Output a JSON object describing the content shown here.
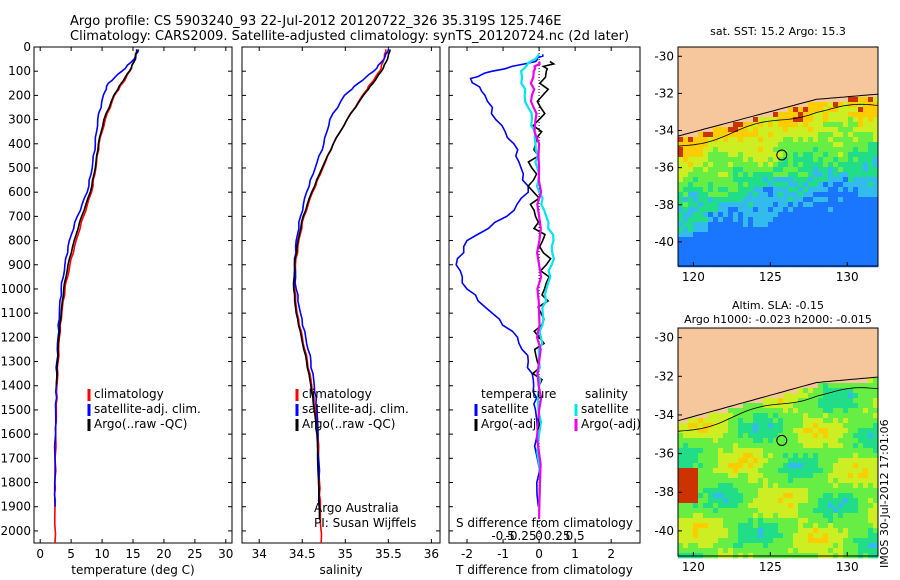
{
  "header": {
    "line1": "Argo profile: CS 5903240_93 22-Jul-2012 20120722_326 35.319S 125.746E",
    "line2": "Climatology: CARS2009. Satellite-adjusted climatology: synTS_20120724.nc (2d later)"
  },
  "stamp": "IMOS 30-Jul-2012 17:01:06",
  "colors": {
    "clim": "#ff0000",
    "sat": "#0000ff",
    "argo": "#000000",
    "sat_s": "#00e5ee",
    "argo_s": "#ee00ee",
    "land": "#f6c79c"
  },
  "chart_data": [
    {
      "type": "line",
      "xlabel": "temperature (deg C)",
      "ylabel": "",
      "xlim": [
        -1,
        31
      ],
      "ylim": [
        2050,
        0
      ],
      "xticks": [
        0,
        5,
        10,
        15,
        20,
        25,
        30
      ],
      "yticks": [
        0,
        100,
        200,
        300,
        400,
        500,
        600,
        700,
        800,
        900,
        1000,
        1100,
        1200,
        1300,
        1400,
        1500,
        1600,
        1700,
        1800,
        1900,
        2000
      ],
      "legend": [
        "climatology",
        "satellite-adj. clim.",
        "Argo(..raw -QC)"
      ],
      "series": [
        {
          "name": "climatology",
          "color": "clim",
          "x": [
            15.6,
            15.3,
            14.5,
            13.3,
            12.0,
            10.5,
            9.5,
            9.0,
            8.3,
            7.0,
            5.8,
            4.8,
            4.0,
            3.5,
            3.1,
            2.9,
            2.7,
            2.6,
            2.5,
            2.4,
            2.4,
            2.4
          ],
          "y": [
            10,
            50,
            100,
            150,
            200,
            300,
            400,
            500,
            600,
            700,
            800,
            900,
            1000,
            1100,
            1200,
            1300,
            1400,
            1500,
            1600,
            1800,
            1900,
            2050
          ]
        },
        {
          "name": "satellite-adj. clim.",
          "color": "sat",
          "x": [
            15.9,
            15.2,
            13.2,
            11.0,
            10.2,
            9.3,
            8.9,
            8.4,
            7.6,
            6.0,
            4.7,
            4.0,
            3.4,
            3.1,
            2.9,
            2.7,
            2.6,
            2.5,
            2.4,
            2.4
          ],
          "y": [
            10,
            50,
            100,
            150,
            200,
            300,
            400,
            500,
            600,
            700,
            800,
            900,
            1000,
            1100,
            1200,
            1300,
            1400,
            1500,
            1700,
            1900
          ]
        },
        {
          "name": "Argo(..raw -QC)",
          "color": "argo",
          "x": [
            15.6,
            15.4,
            14.4,
            13.1,
            11.9,
            10.3,
            9.4,
            8.9,
            8.1,
            6.7,
            5.5,
            4.5,
            3.8,
            3.4,
            3.0,
            2.8,
            2.6
          ],
          "y": [
            10,
            50,
            100,
            150,
            200,
            300,
            400,
            500,
            600,
            700,
            800,
            900,
            1000,
            1100,
            1200,
            1300,
            1400
          ]
        }
      ]
    },
    {
      "type": "line",
      "xlabel": "salinity",
      "xlim": [
        33.8,
        36.1
      ],
      "ylim": [
        2050,
        0
      ],
      "xticks": [
        34,
        34.5,
        35,
        35.5,
        36
      ],
      "legend": [
        "climatology",
        "satellite-adj. clim.",
        "Argo(..raw -QC)"
      ],
      "annotation": [
        "Argo Australia",
        "PI: Susan Wijffels"
      ],
      "series": [
        {
          "name": "climatology",
          "color": "clim",
          "x": [
            35.47,
            35.45,
            35.4,
            35.3,
            35.2,
            35.02,
            34.86,
            34.74,
            34.62,
            34.52,
            34.46,
            34.42,
            34.41,
            34.44,
            34.5,
            34.56,
            34.61,
            34.65,
            34.68,
            34.7,
            34.71,
            34.72
          ],
          "y": [
            10,
            50,
            100,
            150,
            200,
            300,
            400,
            500,
            600,
            700,
            800,
            900,
            1000,
            1100,
            1200,
            1300,
            1400,
            1500,
            1600,
            1800,
            1900,
            2050
          ]
        },
        {
          "name": "satellite-adj. clim.",
          "color": "sat",
          "x": [
            35.5,
            35.45,
            35.33,
            35.15,
            34.99,
            34.82,
            34.75,
            34.65,
            34.55,
            34.48,
            34.43,
            34.41,
            34.43,
            34.48,
            34.54,
            34.6,
            34.64,
            34.67,
            34.69,
            34.7
          ],
          "y": [
            10,
            50,
            100,
            150,
            200,
            300,
            400,
            500,
            600,
            700,
            800,
            900,
            1000,
            1100,
            1200,
            1300,
            1400,
            1500,
            1700,
            1900
          ]
        },
        {
          "name": "Argo(..raw -QC)",
          "color": "argo",
          "x": [
            35.52,
            35.49,
            35.42,
            35.32,
            35.21,
            35.02,
            34.86,
            34.73,
            34.61,
            34.51,
            34.45,
            34.41,
            34.4,
            34.43,
            34.49,
            34.55,
            34.6,
            34.64,
            34.67,
            34.69,
            34.7
          ],
          "y": [
            10,
            50,
            100,
            150,
            200,
            300,
            400,
            500,
            600,
            700,
            800,
            900,
            1000,
            1100,
            1200,
            1300,
            1400,
            1500,
            1600,
            1800,
            1950
          ]
        }
      ]
    },
    {
      "type": "line",
      "xlabel": "T difference from climatology",
      "x2label": "S difference from climatology",
      "xlim": [
        -2.5,
        2.8
      ],
      "ylim": [
        2050,
        0
      ],
      "xticks": [
        -2,
        -1,
        0,
        1,
        2
      ],
      "x2ticks": [
        -0.5,
        -0.25,
        0,
        0.25,
        0.5
      ],
      "legend_titles": [
        "temperature",
        "salinity"
      ],
      "legend": [
        "satellite",
        "Argo(-adj)",
        "satellite",
        "Argo(-adj)"
      ],
      "series": [
        {
          "name": "temperature satellite",
          "color": "sat",
          "x": [
            0.1,
            -0.1,
            -1.3,
            -1.9,
            -1.5,
            -1.2,
            -0.7,
            -0.5,
            -0.3,
            -0.9,
            -2.0,
            -2.3,
            -2.0,
            -1.3,
            -0.6,
            -0.3,
            -0.15,
            -0.1,
            -0.05,
            -0.02
          ],
          "y": [
            30,
            60,
            100,
            130,
            200,
            300,
            400,
            500,
            600,
            700,
            800,
            900,
            1000,
            1100,
            1200,
            1300,
            1400,
            1500,
            1700,
            1900
          ]
        },
        {
          "name": "temperature Argo(-adj)",
          "color": "argo",
          "x": [
            0.3,
            0.2,
            0.1,
            0.0,
            -0.1,
            -0.2,
            -0.15,
            -0.1,
            0.1,
            0.2,
            0.15,
            0.05,
            0.0,
            -0.05,
            0.0
          ],
          "y": [
            60,
            100,
            200,
            300,
            400,
            500,
            600,
            700,
            800,
            900,
            1000,
            1100,
            1200,
            1300,
            1400
          ]
        },
        {
          "name": "salinity satellite",
          "color": "sat_s",
          "x": [
            0.0,
            -0.5,
            -0.4,
            -0.2,
            -0.1,
            -0.05,
            0.0,
            0.2,
            0.4,
            0.35,
            0.2,
            0.1,
            0.05,
            0.0,
            0.0,
            0.0,
            0.0
          ],
          "y": [
            30,
            100,
            200,
            300,
            400,
            500,
            600,
            700,
            800,
            900,
            1000,
            1100,
            1200,
            1300,
            1400,
            1600,
            1900
          ]
        },
        {
          "name": "salinity Argo(-adj)",
          "color": "argo_s",
          "x": [
            0.0,
            -0.15,
            -0.2,
            -0.1,
            0.0,
            0.0,
            0.0,
            0.0,
            0.0,
            0.0,
            0.0
          ],
          "y": [
            60,
            100,
            200,
            300,
            500,
            700,
            900,
            1100,
            1300,
            1500,
            1950
          ]
        }
      ]
    },
    {
      "type": "heatmap",
      "title": "sat. SST: 15.2  Argo: 15.3",
      "xlim": [
        119,
        132
      ],
      "ylim": [
        -41.3,
        -29.5
      ],
      "xticks": [
        120,
        125,
        130
      ],
      "yticks": [
        -30,
        -32,
        -34,
        -36,
        -38,
        -40
      ],
      "marker": [
        125.746,
        -35.319
      ]
    },
    {
      "type": "heatmap",
      "title": "Altim. SLA: -0.15",
      "subtitle": "Argo h1000: -0.023 h2000: -0.015",
      "xlim": [
        119,
        132
      ],
      "ylim": [
        -41.3,
        -29.5
      ],
      "xticks": [
        120,
        125,
        130
      ],
      "yticks": [
        -30,
        -32,
        -34,
        -36,
        -38,
        -40
      ],
      "marker": [
        125.746,
        -35.319
      ]
    }
  ]
}
